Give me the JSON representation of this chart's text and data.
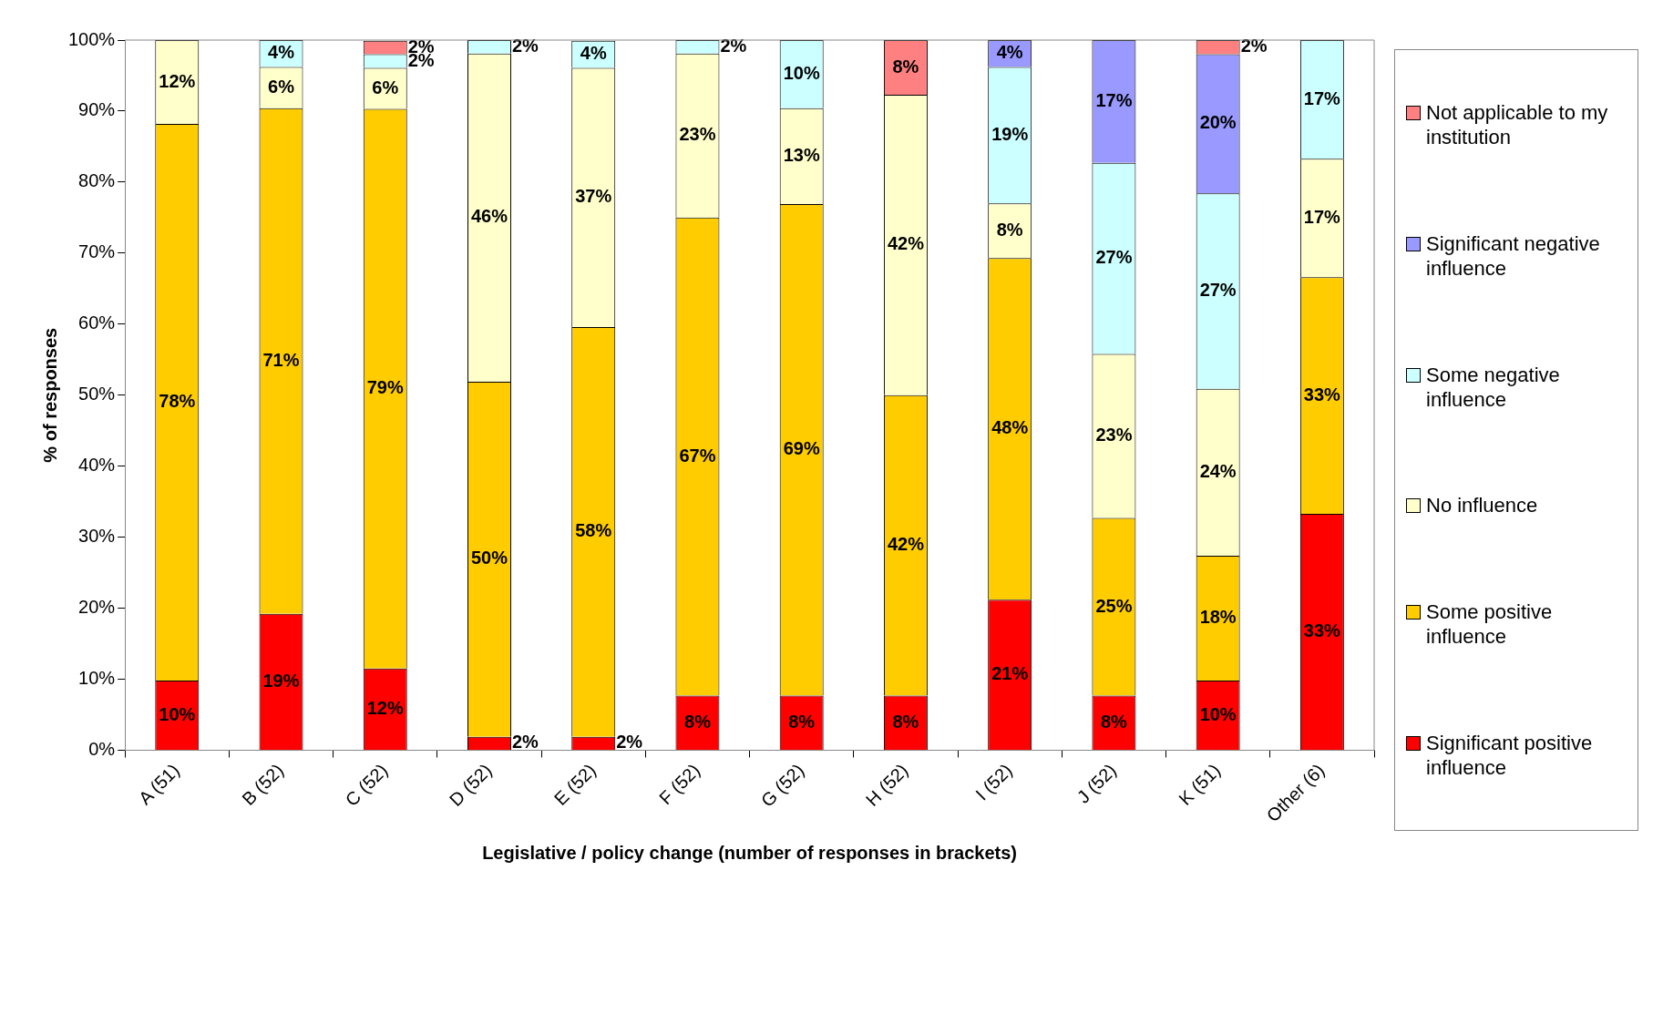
{
  "chart_data": {
    "type": "bar",
    "stacked": true,
    "xlabel": "Legislative / policy change (number of responses in brackets)",
    "ylabel": "% of responses",
    "categories": [
      "A (51)",
      "B (52)",
      "C (52)",
      "D (52)",
      "E (52)",
      "F (52)",
      "G (52)",
      "H (52)",
      "I (52)",
      "J (52)",
      "K (51)",
      "Other (6)"
    ],
    "ylim": [
      0,
      100
    ],
    "yticks": [
      {
        "value": 0,
        "label": "0%"
      },
      {
        "value": 10,
        "label": "10%"
      },
      {
        "value": 20,
        "label": "20%"
      },
      {
        "value": 30,
        "label": "30%"
      },
      {
        "value": 40,
        "label": "40%"
      },
      {
        "value": 50,
        "label": "50%"
      },
      {
        "value": 60,
        "label": "60%"
      },
      {
        "value": 70,
        "label": "70%"
      },
      {
        "value": 80,
        "label": "80%"
      },
      {
        "value": 90,
        "label": "90%"
      },
      {
        "value": 100,
        "label": "100%"
      }
    ],
    "grid": false,
    "legend": "right",
    "series": [
      {
        "name": "Significant positive influence",
        "color": "#ff0000",
        "values": [
          9.8,
          19.2,
          11.5,
          1.9,
          1.9,
          7.7,
          7.7,
          7.7,
          21.2,
          7.7,
          9.8,
          33.3
        ],
        "value_labels": [
          "10%",
          "19%",
          "12%",
          "2%",
          "2%",
          "8%",
          "8%",
          "8%",
          "21%",
          "8%",
          "10%",
          "33%"
        ]
      },
      {
        "name": "Some positive influence",
        "color": "#ffcc00",
        "values": [
          78.4,
          71.2,
          78.8,
          50,
          57.7,
          67.3,
          69.2,
          42.3,
          48.1,
          25,
          17.6,
          33.3
        ],
        "value_labels": [
          "78%",
          "71%",
          "79%",
          "50%",
          "58%",
          "67%",
          "69%",
          "42%",
          "48%",
          "25%",
          "18%",
          "33%"
        ]
      },
      {
        "name": "No influence",
        "color": "#ffffcc",
        "values": [
          11.8,
          5.8,
          5.8,
          46.2,
          36.5,
          23.1,
          13.5,
          42.3,
          7.7,
          23.1,
          23.5,
          16.7
        ],
        "value_labels": [
          "12%",
          "6%",
          "6%",
          "46%",
          "37%",
          "23%",
          "13%",
          "42%",
          "8%",
          "23%",
          "24%",
          "17%"
        ]
      },
      {
        "name": "Some negative influence",
        "color": "#ccffff",
        "values": [
          0,
          3.8,
          1.9,
          1.9,
          3.8,
          1.9,
          9.6,
          0,
          19.2,
          26.9,
          27.5,
          16.7
        ],
        "value_labels": [
          null,
          "4%",
          "2%",
          "2%",
          "4%",
          "2%",
          "10%",
          null,
          "19%",
          "27%",
          "27%",
          "17%"
        ]
      },
      {
        "name": "Significant negative influence",
        "color": "#9999ff",
        "values": [
          0,
          0,
          0,
          0,
          0,
          0,
          0,
          0,
          3.8,
          17.3,
          19.6,
          0
        ],
        "value_labels": [
          null,
          null,
          null,
          null,
          null,
          null,
          null,
          null,
          "4%",
          "17%",
          "20%",
          null
        ]
      },
      {
        "name": "Not applicable to my institution",
        "color": "#ff8080",
        "values": [
          0,
          0,
          1.9,
          0,
          0,
          0,
          0,
          7.7,
          0,
          0,
          2.0,
          0
        ],
        "value_labels": [
          null,
          null,
          "2%",
          null,
          null,
          null,
          null,
          "8%",
          null,
          null,
          "2%",
          null
        ]
      }
    ]
  }
}
